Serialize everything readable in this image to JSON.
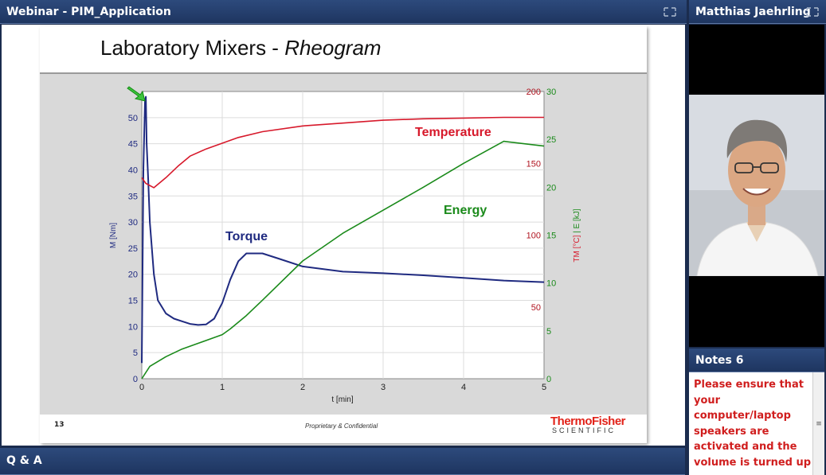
{
  "webinar": {
    "title": "Webinar - PIM_Application"
  },
  "presenter": {
    "name": "Matthias Jaehrling"
  },
  "notes": {
    "title": "Notes 6",
    "text": "Please ensure that your computer/laptop speakers are activated and the volume is turned up"
  },
  "qa": {
    "title": "Q & A"
  },
  "slide": {
    "title_main": "Laboratory Mixers - ",
    "title_italic": "Rheogram",
    "number": "13",
    "footer": "Proprietary & Confidential",
    "logo_top": "ThermoFisher",
    "logo_bottom": "SCIENTIFIC"
  },
  "colors": {
    "torque": "#1f2a80",
    "temperature": "#d7192b",
    "energy": "#1a8a1a",
    "chrome": "#1e3560"
  },
  "icons": [
    "expand-icon",
    "expand-icon",
    "notes-scroll-icon"
  ],
  "chart_data": {
    "type": "line",
    "xlabel": "t [min]",
    "ylabel_left": "M [Nm]",
    "ylabel_right": "TM [°C] | E [kJ]",
    "xlim": [
      0,
      5
    ],
    "x_ticks": [
      "0",
      "1",
      "2",
      "3",
      "4",
      "5"
    ],
    "y_left": {
      "lim": [
        0,
        55
      ],
      "ticks": [
        "0",
        "5",
        "10",
        "15",
        "20",
        "25",
        "30",
        "35",
        "40",
        "45",
        "50"
      ]
    },
    "y_right_temp": {
      "lim": [
        0,
        200
      ],
      "ticks": [
        "50",
        "100",
        "150",
        "200"
      ]
    },
    "y_right_energy": {
      "lim": [
        0,
        30
      ],
      "ticks": [
        "0",
        "5",
        "10",
        "15",
        "20",
        "25",
        "30"
      ]
    },
    "annotations": [
      "Temperature",
      "Energy",
      "Torque"
    ],
    "grid": true,
    "series": [
      {
        "name": "Torque",
        "axis": "left",
        "x": [
          0,
          0.02,
          0.04,
          0.05,
          0.06,
          0.08,
          0.1,
          0.15,
          0.2,
          0.3,
          0.4,
          0.5,
          0.6,
          0.7,
          0.8,
          0.9,
          1.0,
          1.1,
          1.2,
          1.3,
          1.4,
          1.5,
          1.7,
          2.0,
          2.5,
          3.0,
          3.5,
          4.0,
          4.5,
          5.0
        ],
        "y": [
          3,
          40,
          53,
          54,
          45,
          38,
          30,
          20,
          15,
          12.5,
          11.5,
          11,
          10.5,
          10.3,
          10.4,
          11.5,
          14.5,
          19,
          22.5,
          24,
          24,
          24,
          23,
          21.5,
          20.5,
          20.2,
          19.8,
          19.3,
          18.8,
          18.5
        ]
      },
      {
        "name": "Temperature",
        "axis": "right_temp",
        "x": [
          0,
          0.05,
          0.15,
          0.3,
          0.45,
          0.6,
          0.8,
          1.0,
          1.2,
          1.5,
          2.0,
          2.5,
          3.0,
          3.5,
          4.0,
          4.5,
          5.0
        ],
        "y": [
          140,
          136,
          133,
          140,
          148,
          155,
          160,
          164,
          168,
          172,
          176,
          178,
          180,
          181,
          181.5,
          182,
          182
        ]
      },
      {
        "name": "Energy",
        "axis": "right_energy",
        "x": [
          0,
          0.1,
          0.3,
          0.5,
          0.7,
          0.9,
          1.0,
          1.1,
          1.3,
          1.5,
          2.0,
          2.5,
          3.0,
          3.5,
          4.0,
          4.5,
          5.0
        ],
        "y": [
          0,
          1.3,
          2.3,
          3.1,
          3.7,
          4.3,
          4.6,
          5.2,
          6.6,
          8.2,
          12.3,
          15.2,
          17.6,
          20.0,
          22.5,
          24.8,
          24.3
        ]
      }
    ]
  }
}
